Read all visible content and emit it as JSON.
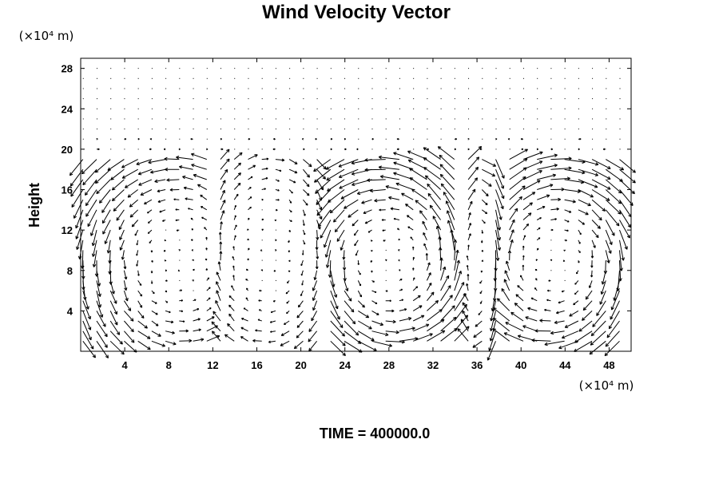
{
  "chart_data": {
    "type": "vector-field",
    "title": "Wind Velocity Vector",
    "xlabel": "",
    "ylabel": "Height",
    "x_unit": "(×10⁴ m)",
    "y_unit": "(×10⁴ m)",
    "xlim": [
      0,
      50
    ],
    "ylim": [
      0,
      29
    ],
    "x_ticks": [
      4,
      8,
      12,
      16,
      20,
      24,
      28,
      32,
      36,
      40,
      44,
      48
    ],
    "y_ticks": [
      4,
      8,
      12,
      16,
      20,
      24,
      28
    ],
    "grid": false,
    "cells": [
      {
        "x0": 0,
        "x1": 12,
        "xc": 9,
        "yc": 9,
        "rx": 6,
        "ry": 9,
        "dir": 1,
        "mag": 1.8
      },
      {
        "x0": 12,
        "x1": 22,
        "xc": 17,
        "yc": 10,
        "rx": 5,
        "ry": 10,
        "dir": -1,
        "mag": 1.2
      },
      {
        "x0": 22,
        "x1": 34,
        "xc": 28,
        "yc": 9,
        "rx": 6,
        "ry": 9,
        "dir": 1,
        "mag": 3.0
      },
      {
        "x0": 34,
        "x1": 38,
        "xc": 36,
        "yc": 9,
        "rx": 2,
        "ry": 9,
        "dir": -1,
        "mag": 1.5
      },
      {
        "x0": 38,
        "x1": 50,
        "xc": 43,
        "yc": 9,
        "rx": 6,
        "ry": 9,
        "dir": -1,
        "mag": 3.0
      }
    ],
    "upper_layer": {
      "y_min": 20,
      "y_max": 29,
      "noise_mag": 0.35
    }
  },
  "footer": {
    "time_label": "TIME = 400000.0"
  }
}
